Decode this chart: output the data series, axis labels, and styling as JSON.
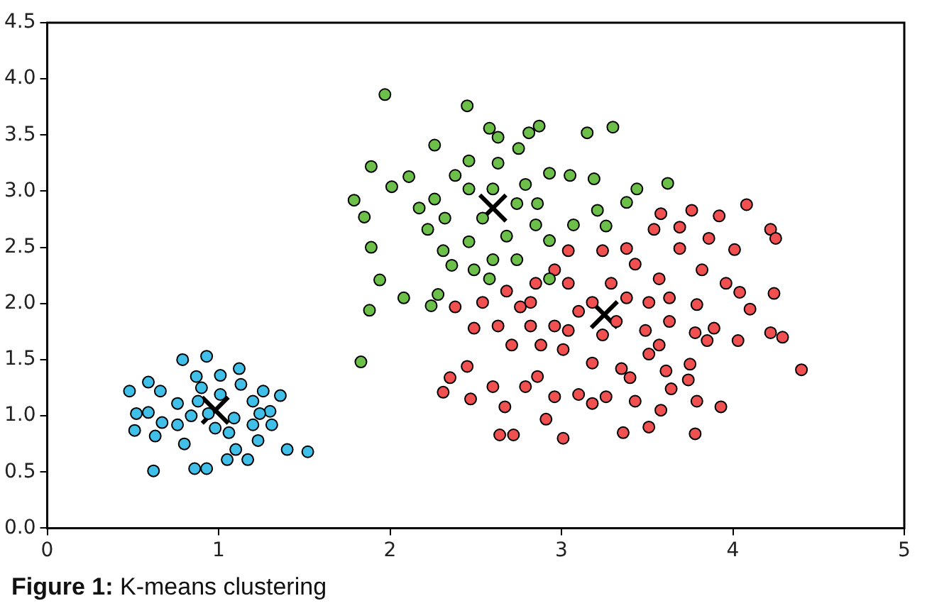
{
  "chart_data": {
    "type": "scatter",
    "xlim": [
      0,
      5
    ],
    "xticks": [
      0,
      1,
      2,
      3,
      4,
      5
    ],
    "ylim": [
      0,
      4.5
    ],
    "yticks": [
      {
        "value": 0,
        "label": "0.0"
      },
      {
        "value": 0.5,
        "label": "0.5"
      },
      {
        "value": 1,
        "label": "1.0"
      },
      {
        "value": 1.5,
        "label": "1.5"
      },
      {
        "value": 2,
        "label": "2.0"
      },
      {
        "value": 2.5,
        "label": "2.5"
      },
      {
        "value": 3,
        "label": "3.0"
      },
      {
        "value": 3.5,
        "label": "3.5"
      },
      {
        "value": 4,
        "label": "4.0"
      },
      {
        "value": 4.5,
        "label": "4.5"
      }
    ],
    "grid": false,
    "legend": false,
    "marker": "circle",
    "annotations": [
      "Figure 1: K-means clustering"
    ],
    "series": [
      {
        "color": "#40c0e8",
        "x": [
          0.79,
          0.93,
          0.48,
          0.59,
          0.66,
          0.52,
          0.59,
          0.51,
          0.63,
          0.67,
          0.76,
          0.62,
          0.86,
          0.93,
          1.12,
          1.26,
          1.36,
          1.3,
          1.31,
          1.4,
          1.52,
          1.05,
          1.17,
          1.23,
          1.1,
          0.8,
          0.84,
          0.88,
          1.01,
          1.01,
          1.09,
          1.2,
          1.2,
          0.76,
          0.98,
          1.06,
          0.9,
          1.13,
          0.94,
          1.24,
          0.87
        ],
        "values": [
          1.5,
          1.53,
          1.22,
          1.3,
          1.22,
          1.02,
          1.03,
          0.87,
          0.82,
          0.94,
          0.92,
          0.51,
          0.53,
          0.53,
          1.42,
          1.22,
          1.18,
          1.04,
          0.92,
          0.7,
          0.68,
          0.61,
          0.61,
          0.78,
          0.7,
          0.75,
          1.0,
          1.13,
          1.36,
          1.19,
          0.98,
          0.92,
          1.13,
          1.11,
          0.89,
          0.85,
          1.25,
          1.28,
          1.02,
          1.02,
          1.35
        ]
      },
      {
        "color": "#6cc04a",
        "x": [
          1.97,
          2.45,
          2.58,
          2.63,
          2.87,
          3.15,
          3.3,
          2.26,
          1.89,
          2.11,
          2.01,
          1.79,
          1.85,
          1.89,
          1.94,
          1.88,
          2.08,
          2.28,
          2.24,
          2.81,
          2.75,
          2.93,
          3.05,
          3.19,
          3.44,
          3.62,
          3.38,
          3.21,
          3.26,
          3.07,
          2.93,
          2.74,
          2.6,
          2.49,
          2.36,
          2.31,
          2.22,
          2.17,
          2.26,
          2.38,
          2.46,
          2.63,
          2.79,
          2.86,
          2.85,
          2.68,
          2.46,
          2.54,
          2.32,
          2.74,
          2.6,
          2.46,
          2.93,
          2.58,
          1.83
        ],
        "values": [
          3.86,
          3.76,
          3.56,
          3.48,
          3.58,
          3.52,
          3.57,
          3.41,
          3.22,
          3.13,
          3.04,
          2.92,
          2.77,
          2.5,
          2.21,
          1.94,
          2.05,
          2.08,
          1.98,
          3.52,
          3.38,
          3.16,
          3.14,
          3.11,
          3.02,
          3.07,
          2.9,
          2.83,
          2.69,
          2.7,
          2.56,
          2.39,
          2.39,
          2.3,
          2.34,
          2.47,
          2.66,
          2.85,
          2.93,
          3.14,
          3.27,
          3.25,
          3.06,
          2.89,
          2.7,
          2.6,
          2.55,
          2.76,
          2.76,
          2.89,
          3.02,
          3.02,
          2.22,
          2.22,
          1.48
        ]
      },
      {
        "color": "#f05050",
        "x": [
          4.08,
          3.76,
          3.92,
          3.58,
          3.54,
          3.69,
          3.86,
          4.01,
          4.22,
          4.25,
          3.69,
          3.82,
          3.96,
          4.04,
          4.24,
          4.1,
          3.79,
          3.63,
          3.89,
          4.03,
          4.22,
          4.29,
          4.4,
          3.78,
          3.85,
          3.57,
          3.75,
          3.61,
          3.74,
          3.64,
          3.79,
          3.93,
          3.58,
          3.51,
          3.78,
          3.36,
          3.01,
          2.72,
          2.64,
          2.91,
          2.67,
          2.47,
          2.31,
          2.35,
          2.45,
          2.6,
          2.79,
          2.96,
          3.1,
          3.26,
          3.4,
          3.43,
          3.18,
          2.86,
          2.49,
          2.38,
          2.63,
          2.76,
          2.71,
          2.88,
          3.01,
          3.18,
          3.35,
          3.51,
          3.49,
          3.63,
          3.57,
          3.43,
          3.38,
          3.24,
          3.04,
          2.96,
          2.85,
          2.68,
          3.04,
          3.29,
          3.1,
          2.96,
          3.32,
          3.24,
          3.04,
          2.82,
          3.38,
          3.51,
          3.18,
          2.82,
          2.54
        ],
        "values": [
          2.88,
          2.83,
          2.78,
          2.8,
          2.66,
          2.68,
          2.58,
          2.48,
          2.66,
          2.58,
          2.49,
          2.3,
          2.18,
          2.1,
          2.09,
          1.95,
          1.99,
          2.05,
          1.78,
          1.67,
          1.74,
          1.7,
          1.41,
          1.74,
          1.67,
          1.63,
          1.46,
          1.4,
          1.32,
          1.24,
          1.13,
          1.08,
          1.05,
          0.9,
          0.84,
          0.85,
          0.8,
          0.83,
          0.83,
          0.97,
          1.08,
          1.15,
          1.21,
          1.34,
          1.44,
          1.26,
          1.26,
          1.17,
          1.19,
          1.17,
          1.34,
          1.13,
          1.11,
          1.35,
          1.78,
          1.97,
          1.8,
          1.97,
          1.63,
          1.63,
          1.59,
          1.47,
          1.42,
          1.55,
          1.76,
          1.84,
          2.22,
          2.35,
          2.49,
          2.47,
          2.47,
          2.3,
          2.18,
          2.11,
          2.18,
          2.18,
          1.93,
          1.8,
          1.84,
          1.72,
          1.76,
          1.8,
          2.05,
          2.01,
          2.01,
          2.01,
          2.01
        ]
      },
      {
        "color": "#000000",
        "marker": "cross",
        "x": [
          0.98,
          2.6,
          3.25
        ],
        "values": [
          1.05,
          2.85,
          1.9
        ]
      }
    ]
  }
}
